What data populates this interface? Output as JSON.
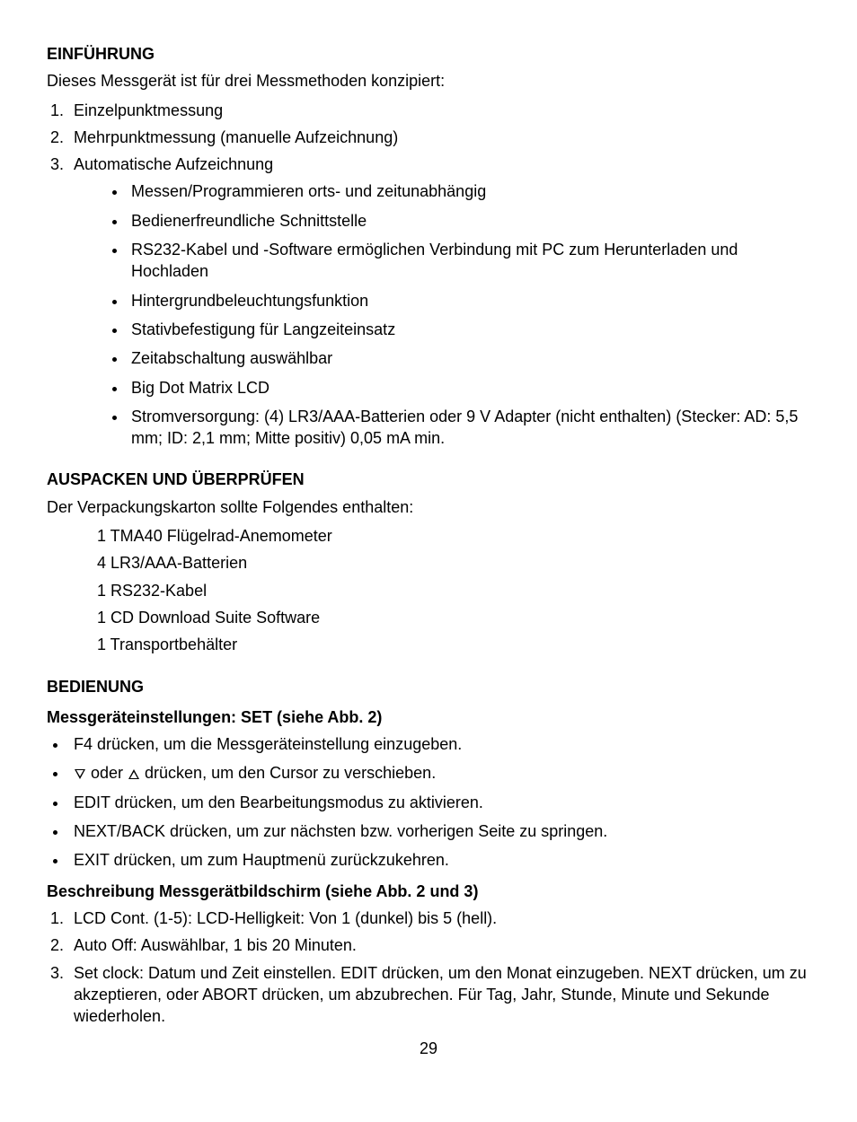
{
  "section1": {
    "heading": "EINFÜHRUNG",
    "intro": "Dieses Messgerät ist für drei Messmethoden konzipiert:",
    "items": [
      "Einzelpunktmessung",
      "Mehrpunktmessung (manuelle Aufzeichnung)",
      "Automatische Aufzeichnung"
    ],
    "sub_bullets": [
      "Messen/Programmieren orts- und zeitunabhängig",
      "Bedienerfreundliche Schnittstelle",
      "RS232-Kabel und -Software ermöglichen Verbindung mit PC zum Herunterladen und Hochladen",
      "Hintergrundbeleuchtungsfunktion",
      "Stativbefestigung für Langzeiteinsatz",
      "Zeitabschaltung auswählbar",
      "Big Dot Matrix LCD",
      "Stromversorgung: (4) LR3/AAA-Batterien oder 9 V Adapter (nicht enthalten) (Stecker: AD: 5,5 mm; ID: 2,1 mm; Mitte positiv) 0,05 mA min."
    ]
  },
  "section2": {
    "heading": "AUSPACKEN UND ÜBERPRÜFEN",
    "intro": "Der Verpackungskarton sollte Folgendes enthalten:",
    "items": [
      "1 TMA40 Flügelrad-Anemometer",
      "4 LR3/AAA-Batterien",
      "1 RS232-Kabel",
      "1 CD Download Suite Software",
      "1 Transportbehälter"
    ]
  },
  "section3": {
    "heading": "BEDIENUNG",
    "sub1_heading": "Messgeräteinstellungen: SET (siehe Abb. 2)",
    "sub1_items": [
      "F4 drücken, um die Messgeräteinstellung einzugeben.",
      "__ARROWS__ drücken, um den Cursor zu verschieben.",
      "EDIT drücken, um den Bearbeitungsmodus zu aktivieren.",
      "NEXT/BACK drücken, um zur nächsten bzw. vorherigen Seite zu springen.",
      "EXIT drücken, um zum Hauptmenü zurückzukehren."
    ],
    "arrows_text_after": " oder ",
    "arrows_text_tail": " drücken, um den Cursor zu verschieben.",
    "sub2_heading": "Beschreibung Messgerätbildschirm (siehe Abb. 2 und 3)",
    "sub2_items": [
      "LCD Cont. (1-5): LCD-Helligkeit: Von 1 (dunkel) bis 5 (hell).",
      "Auto Off: Auswählbar, 1 bis 20 Minuten.",
      "Set clock: Datum und Zeit einstellen. EDIT drücken, um den Monat einzugeben. NEXT drücken, um zu akzeptieren, oder ABORT drücken, um abzubrechen. Für Tag, Jahr, Stunde, Minute und Sekunde wiederholen."
    ]
  },
  "page_number": "29"
}
